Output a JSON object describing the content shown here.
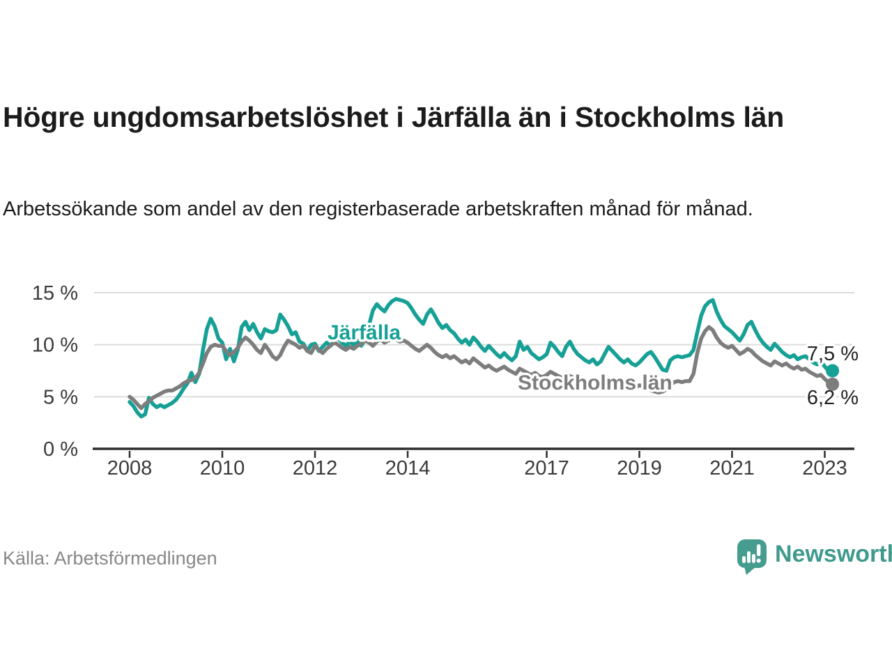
{
  "header": {
    "title": "Högre ungdomsarbetslöshet i Järfälla än i Stockholms län",
    "subtitle": "Arbetssökande som andel av den registerbaserade arbetskraften månad för månad."
  },
  "footer": {
    "source": "Källa: Arbetsförmedlingen",
    "brand": "Newsworthy"
  },
  "colors": {
    "jarfalla": "#16a096",
    "stockholms_lan": "#7d7d7d",
    "axis": "#2e2e2e",
    "grid": "#dcdcdc",
    "tick_text": "#3a3a3a",
    "logo_teal": "#3f9a8d"
  },
  "chart_data": {
    "type": "line",
    "title": "Högre ungdomsarbetslöshet i Järfälla än i Stockholms län",
    "xlabel": "",
    "ylabel": "Arbetssökande som andel av den registerbaserade arbetskraften",
    "x_start": "2008-01",
    "x_end": "2023-03",
    "x_interval": "monthly",
    "xlim": [
      2008,
      2023.6
    ],
    "ylim": [
      0,
      15.5
    ],
    "grid": "horizontal",
    "legend_position": "inline-labels",
    "x_ticks": [
      2008,
      2010,
      2012,
      2014,
      2017,
      2019,
      2021,
      2023
    ],
    "x_tick_labels": [
      "2008",
      "2010",
      "2012",
      "2014",
      "2017",
      "2019",
      "2021",
      "2023"
    ],
    "y_ticks": [
      0,
      5,
      10,
      15
    ],
    "y_tick_labels": [
      "0 %",
      "5 %",
      "10 %",
      "15 %"
    ],
    "series": [
      {
        "id": "jarfalla",
        "name": "Järfälla",
        "color": "#16a096",
        "end_label": "7,5 %",
        "end_value": 7.5,
        "values": [
          4.5,
          4.1,
          3.5,
          3.1,
          3.3,
          4.9,
          4.3,
          4.0,
          4.2,
          4.0,
          4.2,
          4.4,
          4.7,
          5.2,
          5.8,
          6.3,
          7.3,
          6.4,
          7.2,
          9.5,
          11.5,
          12.5,
          11.8,
          10.6,
          10.2,
          8.6,
          9.6,
          8.4,
          9.5,
          11.7,
          12.2,
          11.4,
          12.0,
          11.2,
          10.6,
          11.5,
          11.3,
          11.2,
          11.4,
          12.9,
          12.4,
          11.8,
          11.0,
          11.2,
          10.3,
          10.1,
          9.4,
          10.0,
          10.1,
          9.4,
          9.8,
          10.2,
          9.9,
          10.4,
          10.6,
          10.2,
          9.9,
          10.3,
          10.0,
          10.4,
          9.9,
          10.5,
          11.9,
          13.3,
          13.9,
          13.5,
          13.2,
          13.8,
          14.2,
          14.4,
          14.3,
          14.2,
          14.0,
          13.5,
          12.9,
          12.4,
          12.0,
          12.9,
          13.4,
          12.8,
          12.1,
          11.6,
          11.9,
          11.4,
          11.1,
          10.6,
          10.2,
          10.5,
          10.0,
          10.7,
          10.3,
          9.8,
          9.4,
          9.9,
          9.5,
          9.1,
          8.8,
          9.2,
          8.8,
          8.5,
          8.9,
          10.3,
          9.5,
          9.8,
          9.2,
          8.9,
          8.6,
          8.8,
          9.1,
          10.2,
          9.8,
          9.3,
          8.9,
          9.8,
          10.3,
          9.6,
          9.1,
          8.8,
          8.5,
          8.3,
          8.6,
          8.1,
          8.4,
          9.1,
          9.8,
          9.4,
          9.0,
          8.6,
          8.3,
          8.6,
          8.2,
          8.0,
          8.3,
          8.7,
          9.1,
          9.3,
          8.8,
          8.2,
          7.6,
          7.5,
          8.5,
          8.8,
          8.9,
          8.8,
          8.9,
          9.0,
          9.5,
          11.2,
          12.8,
          13.7,
          14.1,
          14.3,
          13.2,
          12.4,
          11.8,
          11.5,
          11.2,
          10.8,
          10.4,
          11.0,
          11.9,
          12.2,
          11.4,
          10.7,
          10.2,
          9.8,
          9.5,
          10.1,
          9.7,
          9.3,
          9.0,
          8.8,
          9.0,
          8.6,
          8.8,
          8.9,
          8.6,
          8.3,
          8.1,
          8.4,
          7.9,
          7.5,
          7.5
        ]
      },
      {
        "id": "stockholms-lan",
        "name": "Stockholms län",
        "color": "#7d7d7d",
        "end_label": "6,2 %",
        "end_value": 6.2,
        "values": [
          5.0,
          4.7,
          4.3,
          3.9,
          4.3,
          4.6,
          4.9,
          5.1,
          5.3,
          5.5,
          5.6,
          5.6,
          5.8,
          6.0,
          6.3,
          6.5,
          6.6,
          6.8,
          7.3,
          8.2,
          9.2,
          9.8,
          10.0,
          9.9,
          9.9,
          9.4,
          9.0,
          9.3,
          9.7,
          10.3,
          10.7,
          10.4,
          10.0,
          9.5,
          9.2,
          10.0,
          9.5,
          8.9,
          8.6,
          9.0,
          9.8,
          10.4,
          10.2,
          10.0,
          9.7,
          9.9,
          9.4,
          9.2,
          9.9,
          9.5,
          9.2,
          9.6,
          9.9,
          10.2,
          10.0,
          9.7,
          9.5,
          9.8,
          9.6,
          9.9,
          10.1,
          10.4,
          10.2,
          9.9,
          10.3,
          10.5,
          10.2,
          10.4,
          10.6,
          10.5,
          10.3,
          10.4,
          10.2,
          9.9,
          9.6,
          9.4,
          9.7,
          10.0,
          9.7,
          9.3,
          9.0,
          8.8,
          9.0,
          8.7,
          8.9,
          8.6,
          8.3,
          8.5,
          8.2,
          8.7,
          8.4,
          8.1,
          7.8,
          8.0,
          7.7,
          7.5,
          7.7,
          7.9,
          7.6,
          7.4,
          7.2,
          7.7,
          7.5,
          7.3,
          7.1,
          7.3,
          7.0,
          6.9,
          7.1,
          7.4,
          7.2,
          7.0,
          6.8,
          7.2,
          7.0,
          6.8,
          6.6,
          6.8,
          6.5,
          6.4,
          6.6,
          6.4,
          6.2,
          6.5,
          6.3,
          6.6,
          6.4,
          6.2,
          6.0,
          6.2,
          6.0,
          5.9,
          6.1,
          6.0,
          5.8,
          5.6,
          5.5,
          5.4,
          5.5,
          5.7,
          6.1,
          6.4,
          6.5,
          6.4,
          6.5,
          6.5,
          7.2,
          9.2,
          10.6,
          11.3,
          11.7,
          11.4,
          10.7,
          10.2,
          9.9,
          9.7,
          9.9,
          9.5,
          9.1,
          9.3,
          9.6,
          9.4,
          9.0,
          8.7,
          8.4,
          8.2,
          8.0,
          8.4,
          8.2,
          8.0,
          8.2,
          7.9,
          7.7,
          7.9,
          7.6,
          7.7,
          7.4,
          7.2,
          7.0,
          7.1,
          6.7,
          6.4,
          6.2
        ]
      }
    ]
  }
}
